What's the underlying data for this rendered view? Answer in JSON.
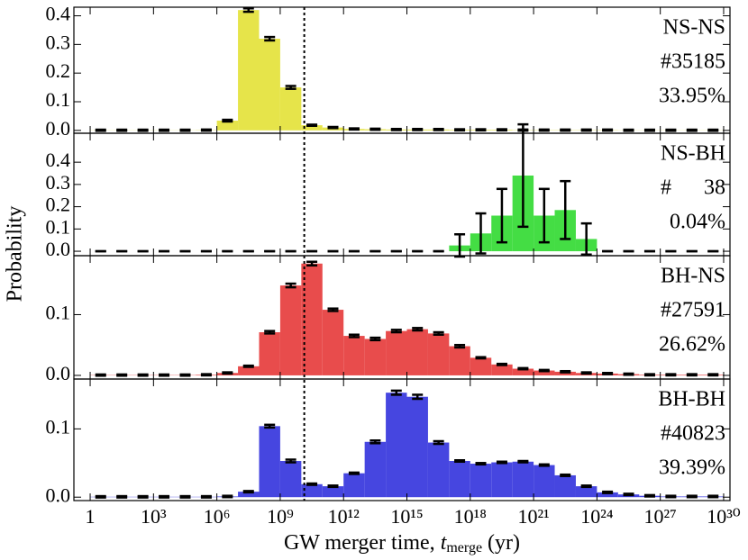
{
  "ylabel": "Probability",
  "xlabel": {
    "text": "GW merger time, ",
    "symbol": "t",
    "subscript": "merge",
    "unit": " (yr)"
  },
  "hubble_time_log": 10.14,
  "chart_data": [
    {
      "type": "histogram",
      "color": "#e6e44a",
      "annotations": [
        "NS-NS",
        "#35185",
        "33.95%"
      ],
      "bins": [
        0,
        1,
        2,
        3,
        4,
        5,
        6,
        7,
        8,
        9,
        10,
        11,
        12,
        13,
        14,
        15,
        16,
        17,
        18,
        19,
        20,
        21,
        22,
        23,
        24,
        25,
        26,
        27,
        28,
        29,
        30
      ],
      "values": [
        0.0005,
        0.0005,
        0.0005,
        0.0005,
        0.0005,
        0.001,
        0.034,
        0.42,
        0.32,
        0.15,
        0.018,
        0.01,
        0.005,
        0.004,
        0.003,
        0.003,
        0.003,
        0.002,
        0.002,
        0.002,
        0.001,
        0.001,
        0.001,
        0.001,
        0.001,
        0.0005,
        0.0005,
        0.0005,
        0.0005,
        0.0005
      ],
      "errors": [
        0.002,
        0.002,
        0.002,
        0.002,
        0.002,
        0.002,
        0.003,
        0.006,
        0.006,
        0.005,
        0.002,
        0.002,
        0.002,
        0.002,
        0.002,
        0.002,
        0.002,
        0.002,
        0.002,
        0.002,
        0.002,
        0.002,
        0.002,
        0.002,
        0.002,
        0.002,
        0.002,
        0.002,
        0.002,
        0.002
      ],
      "ylim": [
        -0.01,
        0.43
      ],
      "yticks": [
        {
          "value": 0,
          "label": "0.0"
        },
        0.1,
        0.2,
        0.3,
        0.4
      ]
    },
    {
      "type": "histogram",
      "color": "#44dd44",
      "annotations": [
        "NS-BH",
        "#      38",
        "0.04%"
      ],
      "bins": [
        0,
        1,
        2,
        3,
        4,
        5,
        6,
        7,
        8,
        9,
        10,
        11,
        12,
        13,
        14,
        15,
        16,
        17,
        18,
        19,
        20,
        21,
        22,
        23,
        24,
        25,
        26,
        27,
        28,
        29,
        30
      ],
      "values": [
        0,
        0,
        0,
        0,
        0,
        0,
        0,
        0,
        0,
        0,
        0,
        0,
        0,
        0,
        0,
        0,
        0,
        0.026,
        0.08,
        0.16,
        0.34,
        0.16,
        0.185,
        0.055,
        0,
        0,
        0,
        0,
        0,
        0
      ],
      "errors": [
        0,
        0,
        0,
        0,
        0,
        0,
        0,
        0,
        0,
        0,
        0,
        0,
        0,
        0,
        0,
        0,
        0,
        0.05,
        0.09,
        0.12,
        0.23,
        0.12,
        0.13,
        0.07,
        0,
        0,
        0,
        0,
        0,
        0
      ],
      "ylim": [
        -0.02,
        0.53
      ],
      "yticks": [
        {
          "value": 0,
          "label": "0.0"
        },
        0.1,
        0.2,
        0.3,
        0.4
      ]
    },
    {
      "type": "histogram",
      "color": "#e84c4c",
      "annotations": [
        "BH-NS",
        "#27591",
        "26.62%"
      ],
      "bins": [
        0,
        1,
        2,
        3,
        4,
        5,
        6,
        7,
        8,
        9,
        10,
        11,
        12,
        13,
        14,
        15,
        16,
        17,
        18,
        19,
        20,
        21,
        22,
        23,
        24,
        25,
        26,
        27,
        28,
        29,
        30
      ],
      "values": [
        0.0005,
        0.0005,
        0.0005,
        0.0005,
        0.0005,
        0.001,
        0.004,
        0.015,
        0.071,
        0.148,
        0.184,
        0.108,
        0.065,
        0.06,
        0.073,
        0.076,
        0.069,
        0.048,
        0.029,
        0.018,
        0.011,
        0.008,
        0.006,
        0.004,
        0.003,
        0.002,
        0.001,
        0.001,
        0.001,
        0.001
      ],
      "errors": [
        0.001,
        0.001,
        0.001,
        0.001,
        0.001,
        0.001,
        0.001,
        0.001,
        0.002,
        0.003,
        0.003,
        0.002,
        0.002,
        0.002,
        0.002,
        0.002,
        0.002,
        0.002,
        0.001,
        0.001,
        0.001,
        0.001,
        0.001,
        0.001,
        0.001,
        0.001,
        0.001,
        0.001,
        0.001,
        0.001
      ],
      "ylim": [
        -0.006,
        0.197
      ],
      "yticks": [
        {
          "value": 0,
          "label": "0.0"
        },
        0.1
      ]
    },
    {
      "type": "histogram",
      "color": "#4646e0",
      "annotations": [
        "BH-BH",
        "#40823",
        "39.39%"
      ],
      "bins": [
        0,
        1,
        2,
        3,
        4,
        5,
        6,
        7,
        8,
        9,
        10,
        11,
        12,
        13,
        14,
        15,
        16,
        17,
        18,
        19,
        20,
        21,
        22,
        23,
        24,
        25,
        26,
        27,
        28,
        29,
        30
      ],
      "values": [
        0.0005,
        0.0005,
        0.0005,
        0.0005,
        0.0005,
        0.0005,
        0.001,
        0.008,
        0.104,
        0.053,
        0.019,
        0.016,
        0.035,
        0.081,
        0.153,
        0.147,
        0.08,
        0.053,
        0.049,
        0.051,
        0.052,
        0.047,
        0.032,
        0.016,
        0.007,
        0.004,
        0.002,
        0.001,
        0.001,
        0.001
      ],
      "errors": [
        0.001,
        0.001,
        0.001,
        0.001,
        0.001,
        0.001,
        0.001,
        0.001,
        0.002,
        0.002,
        0.001,
        0.001,
        0.001,
        0.002,
        0.003,
        0.003,
        0.002,
        0.001,
        0.001,
        0.001,
        0.001,
        0.001,
        0.001,
        0.001,
        0.001,
        0.001,
        0.001,
        0.001,
        0.001,
        0.001
      ],
      "ylim": [
        -0.005,
        0.173
      ],
      "yticks": [
        {
          "value": 0,
          "label": "0.0"
        },
        0.1
      ],
      "xlim": [
        -0.77,
        30.3
      ],
      "xticks": [
        {
          "value": 0,
          "label": "1"
        },
        {
          "value": 3,
          "label": "10³"
        },
        {
          "value": 6,
          "label": "10⁶"
        },
        {
          "value": 9,
          "label": "10⁹"
        },
        {
          "value": 12,
          "label": "10¹²"
        },
        {
          "value": 15,
          "label": "10¹⁵"
        },
        {
          "value": 18,
          "label": "10¹⁸"
        },
        {
          "value": 21,
          "label": "10²¹"
        },
        {
          "value": 24,
          "label": "10²⁴"
        },
        {
          "value": 27,
          "label": "10²⁷"
        },
        {
          "value": 30,
          "label": "10³⁰"
        }
      ]
    }
  ]
}
